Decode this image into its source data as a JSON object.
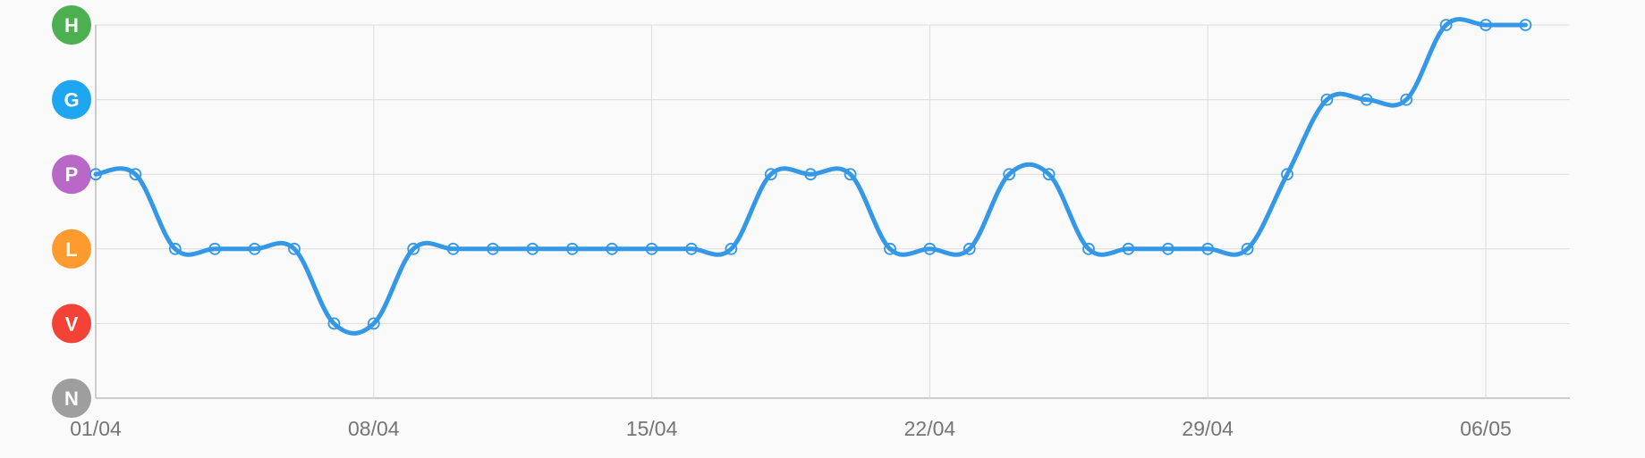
{
  "chart_data": {
    "type": "line",
    "title": "",
    "xlabel": "",
    "ylabel": "",
    "y_levels": [
      {
        "label": "N",
        "color": "#9e9e9e"
      },
      {
        "label": "V",
        "color": "#f44336"
      },
      {
        "label": "L",
        "color": "#ff9a2e"
      },
      {
        "label": "P",
        "color": "#ba68c8"
      },
      {
        "label": "G",
        "color": "#1ea7f0"
      },
      {
        "label": "H",
        "color": "#4caf50"
      }
    ],
    "x_ticks": [
      "01/04",
      "08/04",
      "15/04",
      "22/04",
      "29/04",
      "06/05"
    ],
    "x_range_days": [
      0,
      37.5
    ],
    "grid": true,
    "series": [
      {
        "color": "#3598e6",
        "values": [
          "P",
          "P",
          "L",
          "L",
          "L",
          "L",
          "V",
          "V",
          "L",
          "L",
          "L",
          "L",
          "L",
          "L",
          "L",
          "L",
          "L",
          "P",
          "P",
          "P",
          "L",
          "L",
          "L",
          "P",
          "P",
          "L",
          "L",
          "L",
          "L",
          "L",
          "P",
          "G",
          "G",
          "G",
          "H",
          "H",
          "H"
        ]
      }
    ]
  }
}
